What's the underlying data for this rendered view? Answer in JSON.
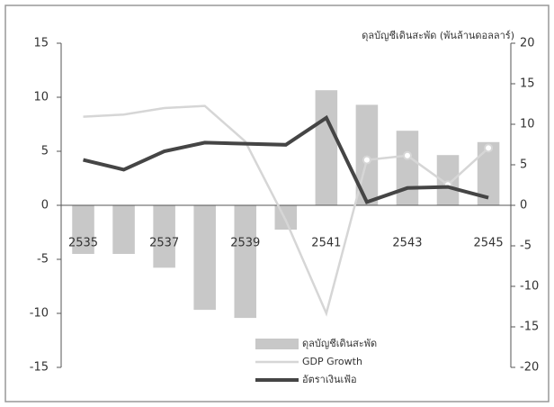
{
  "chart_data": {
    "type": "combo",
    "title": "ดุลบัญชีเดินสะพัด (พันล้านดอลลาร์)",
    "categories": [
      "2535",
      null,
      "2537",
      null,
      "2539",
      null,
      "2541",
      null,
      "2543",
      null,
      "2545"
    ],
    "series": [
      {
        "name": "ดุลบัญชีเดินสะพัด",
        "type": "bar",
        "axis": "y2",
        "color": "#c8c8c8",
        "values": [
          -6.0,
          -6.0,
          -7.7,
          -12.9,
          -13.9,
          -3.0,
          14.2,
          12.4,
          9.2,
          6.2,
          7.8
        ]
      },
      {
        "name": "GDP Growth",
        "type": "line",
        "color": "#d6d6d6",
        "values": [
          8.2,
          8.4,
          9.0,
          9.2,
          5.9,
          -1.4,
          -10.0,
          4.2,
          4.6,
          1.9,
          5.3
        ]
      },
      {
        "name": "อัตราเงินเฟ้อ",
        "type": "line",
        "color": "#454545",
        "values": [
          4.2,
          3.3,
          5.0,
          5.8,
          5.7,
          5.6,
          8.1,
          0.3,
          1.6,
          1.7,
          0.7
        ]
      }
    ],
    "ylim": [
      -15,
      15
    ],
    "yticks": [
      -15,
      -10,
      -5,
      0,
      5,
      10,
      15
    ],
    "y2lim": [
      -20,
      20
    ],
    "y2ticks": [
      -20,
      -15,
      -10,
      -5,
      0,
      5,
      10,
      15,
      20
    ],
    "legend": "bottom"
  }
}
